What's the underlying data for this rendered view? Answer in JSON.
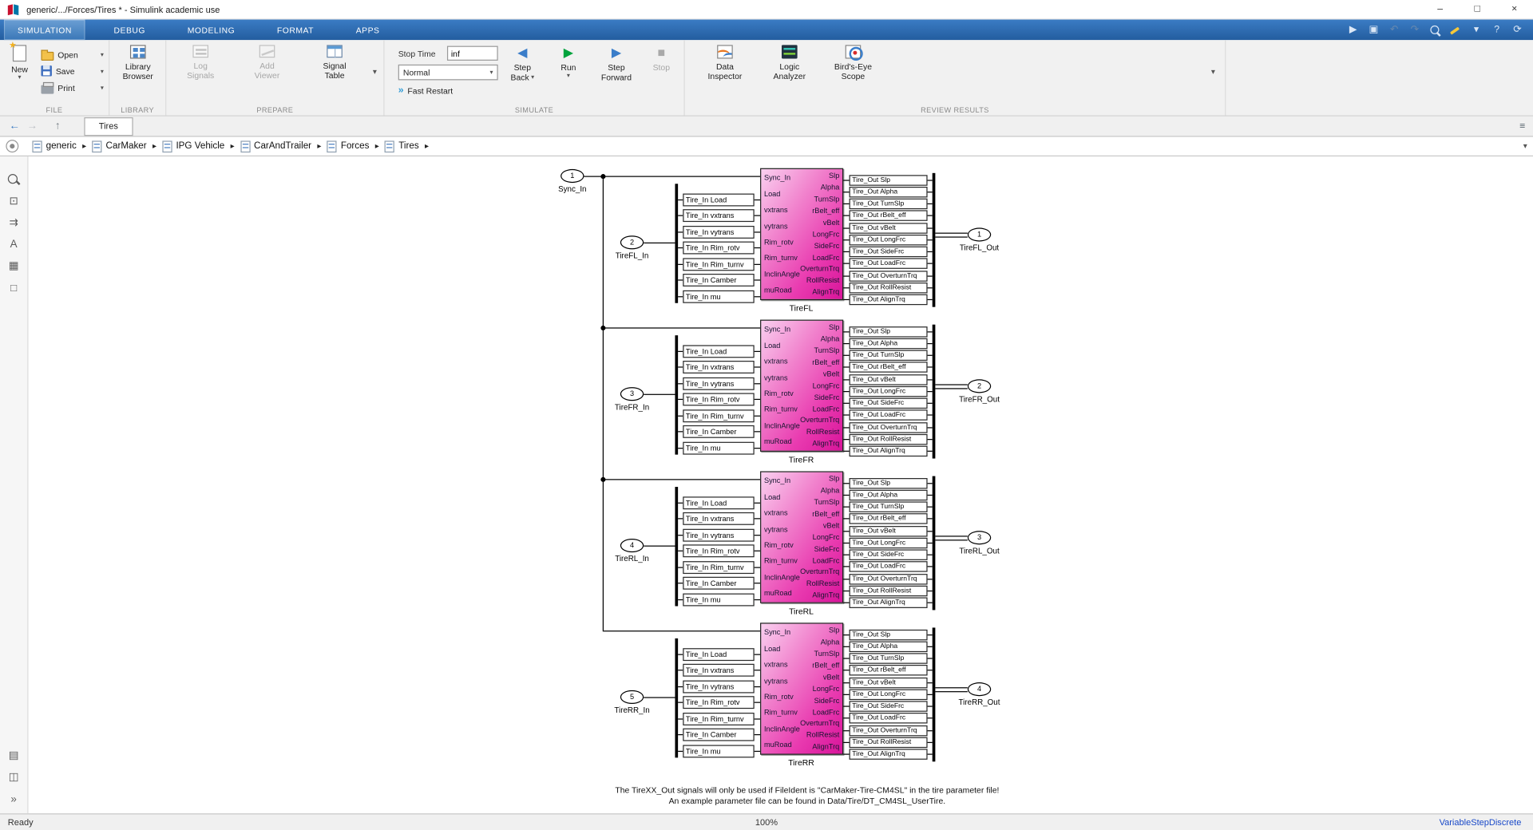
{
  "window": {
    "title": "generic/.../Forces/Tires * - Simulink academic use",
    "controls": {
      "minimize": "–",
      "maximize": "□",
      "close": "×"
    }
  },
  "colors": {
    "tab_bar_blue": "#2e6db6",
    "tire_block_gradient_start": "#fad0f0",
    "tire_block_gradient_end": "#d8149a",
    "run_green": "#00a33c",
    "solver_link_blue": "#1848c8"
  },
  "ribbon": {
    "tabs": [
      {
        "label": "SIMULATION",
        "active": true
      },
      {
        "label": "DEBUG",
        "active": false
      },
      {
        "label": "MODELING",
        "active": false
      },
      {
        "label": "FORMAT",
        "active": false
      },
      {
        "label": "APPS",
        "active": false
      }
    ],
    "sections": {
      "file": {
        "label": "FILE",
        "new_label": "New",
        "items": [
          "Open",
          "Save",
          "Print"
        ]
      },
      "library": {
        "label": "LIBRARY",
        "browser_label1": "Library",
        "browser_label2": "Browser"
      },
      "prepare": {
        "label": "PREPARE",
        "buttons": [
          {
            "label1": "Log",
            "label2": "Signals",
            "disabled": true
          },
          {
            "label1": "Add",
            "label2": "Viewer",
            "disabled": true
          },
          {
            "label1": "Signal",
            "label2": "Table",
            "disabled": false
          }
        ]
      },
      "simulate": {
        "label": "SIMULATE",
        "stop_time_label": "Stop Time",
        "stop_time_value": "inf",
        "mode_value": "Normal",
        "fast_restart_icon": "»",
        "fast_restart_label": "Fast Restart",
        "buttons": [
          {
            "icon": "◀",
            "label1": "Step",
            "label2": "Back",
            "dropdown": true,
            "disabled": false
          },
          {
            "icon": "▶",
            "label1": "Run",
            "dropdown": true,
            "disabled": false
          },
          {
            "icon": "▶",
            "label1": "Step",
            "label2": "Forward",
            "disabled": false
          },
          {
            "icon": "■",
            "label1": "Stop",
            "disabled": true
          }
        ]
      },
      "review": {
        "label": "REVIEW RESULTS",
        "buttons": [
          {
            "label1": "Data",
            "label2": "Inspector"
          },
          {
            "label1": "Logic",
            "label2": "Analyzer"
          },
          {
            "label1": "Bird's-Eye",
            "label2": "Scope"
          }
        ]
      }
    }
  },
  "quick_access": [
    {
      "name": "run-icon",
      "glyph": "▶",
      "disabled": false
    },
    {
      "name": "save-icon",
      "glyph": "▣",
      "disabled": false
    },
    {
      "name": "undo-icon",
      "glyph": "↶",
      "disabled": true
    },
    {
      "name": "redo-icon",
      "glyph": "↷",
      "disabled": true
    },
    {
      "name": "zoom-icon",
      "glyph": "",
      "css": "qmag",
      "disabled": false
    },
    {
      "name": "highlight-icon",
      "glyph": "",
      "css": "qpen",
      "disabled": false
    },
    {
      "name": "customize-caret-icon",
      "glyph": "▾",
      "disabled": false
    },
    {
      "name": "help-icon",
      "glyph": "?",
      "disabled": false
    },
    {
      "name": "update-model-icon",
      "glyph": "⟳",
      "disabled": false
    }
  ],
  "docbar": {
    "tab": "Tires",
    "icons": {
      "back": "←",
      "forward": "→",
      "up": "↑",
      "panel": "≡"
    }
  },
  "breadcrumb": {
    "items": [
      "generic",
      "CarMaker",
      "IPG Vehicle",
      "CarAndTrailer",
      "Forces",
      "Tires"
    ],
    "separator": "▸"
  },
  "palette": [
    {
      "name": "zoom-icon",
      "glyph": "",
      "css": "pmag"
    },
    {
      "name": "fit-to-view-icon",
      "glyph": "⊡"
    },
    {
      "name": "pan-icon",
      "glyph": "⇉"
    },
    {
      "name": "annotation-icon",
      "glyph": "A"
    },
    {
      "name": "image-annotation-icon",
      "glyph": "▦"
    },
    {
      "name": "area-icon",
      "glyph": "□"
    },
    {
      "name": "viewmarks-icon",
      "glyph": "▤"
    },
    {
      "name": "model-browser-icon",
      "glyph": "◫"
    },
    {
      "name": "expand-palette-icon",
      "glyph": "»"
    }
  ],
  "diagram": {
    "sync_inport": {
      "num": "1",
      "label": "Sync_In"
    },
    "block_inputs": [
      "Sync_In",
      "Load",
      "vxtrans",
      "vytrans",
      "Rim_rotv",
      "Rim_turnv",
      "InclinAngle",
      "muRoad"
    ],
    "block_outputs": [
      "Slp",
      "Alpha",
      "TurnSlp",
      "rBelt_eff",
      "vBelt",
      "LongFrc",
      "SideFrc",
      "LoadFrc",
      "OverturnTrq",
      "RollResist",
      "AlignTrq"
    ],
    "input_signal_blocks": [
      "Tire_In Load",
      "Tire_In vxtrans",
      "Tire_In vytrans",
      "Tire_In Rim_rotv",
      "Tire_In Rim_turnv",
      "Tire_In Camber",
      "Tire_In mu"
    ],
    "output_signal_blocks": [
      "Tire_Out Slp",
      "Tire_Out Alpha",
      "Tire_Out TurnSlp",
      "Tire_Out rBelt_eff",
      "Tire_Out vBelt",
      "Tire_Out LongFrc",
      "Tire_Out SideFrc",
      "Tire_Out LoadFrc",
      "Tire_Out OverturnTrq",
      "Tire_Out RollResist",
      "Tire_Out AlignTrq"
    ],
    "groups": [
      {
        "name": "TireFL",
        "inport_num": "2",
        "inport_label": "TireFL_In",
        "outport_num": "1",
        "outport_label": "TireFL_Out"
      },
      {
        "name": "TireFR",
        "inport_num": "3",
        "inport_label": "TireFR_In",
        "outport_num": "2",
        "outport_label": "TireFR_Out"
      },
      {
        "name": "TireRL",
        "inport_num": "4",
        "inport_label": "TireRL_In",
        "outport_num": "3",
        "outport_label": "TireRL_Out"
      },
      {
        "name": "TireRR",
        "inport_num": "5",
        "inport_label": "TireRR_In",
        "outport_num": "4",
        "outport_label": "TireRR_Out"
      }
    ],
    "note_line1": "The TireXX_Out signals will only be used if FileIdent is \"CarMaker-Tire-CM4SL\" in the tire parameter file!",
    "note_line2": "An example parameter file can be found in Data/Tire/DT_CM4SL_UserTire."
  },
  "statusbar": {
    "ready": "Ready",
    "zoom": "100%",
    "solver": "VariableStepDiscrete"
  }
}
